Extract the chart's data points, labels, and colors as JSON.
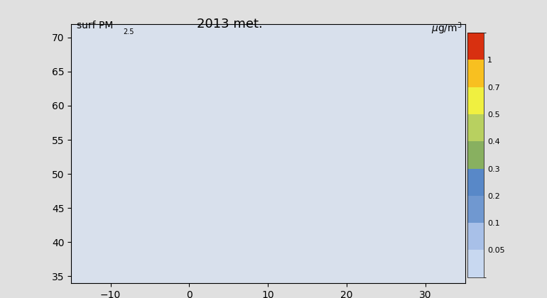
{
  "title": "2013 met.",
  "label_left": "surf PM",
  "label_left_sub": "2.5",
  "label_right": "μg/m³",
  "colorbar_levels": [
    0.05,
    0.1,
    0.2,
    0.3,
    0.4,
    0.5,
    0.7,
    1.0
  ],
  "colorbar_labels": [
    "0.05",
    "0.1",
    "0.2",
    "0.3",
    "0.4",
    "0.5",
    "0.7",
    "1"
  ],
  "colorbar_colors": [
    "#c8d8f0",
    "#a0b8e8",
    "#78a0d8",
    "#5888c8",
    "#88b060",
    "#c8d870",
    "#f0f040",
    "#f8c820",
    "#f89010",
    "#e84010"
  ],
  "background_color": "#d8e0ec",
  "fig_background": "#e0e0e0",
  "map_extent": [
    -15,
    35,
    34,
    72
  ]
}
